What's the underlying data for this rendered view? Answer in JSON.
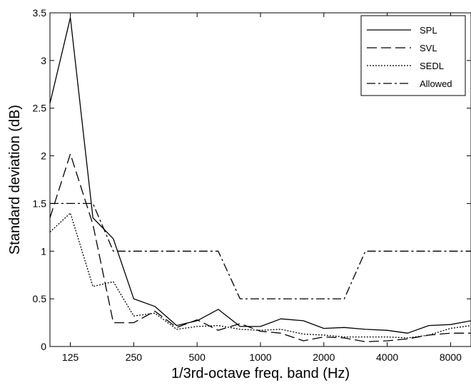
{
  "chart_data": {
    "type": "line",
    "title": "",
    "xlabel": "1/3rd-octave freq. band (Hz)",
    "ylabel": "Standard deviation (dB)",
    "x_scale": "log",
    "x": [
      100,
      125,
      160,
      200,
      250,
      315,
      400,
      500,
      630,
      800,
      1000,
      1250,
      1600,
      2000,
      2500,
      3150,
      4000,
      5000,
      6300,
      8000,
      10000
    ],
    "xlim": [
      100,
      10000
    ],
    "ylim": [
      0,
      3.5
    ],
    "xticks": [
      125,
      250,
      500,
      1000,
      2000,
      4000,
      8000
    ],
    "xtick_labels": [
      "125",
      "250",
      "500",
      "1000",
      "2000",
      "4000",
      "8000"
    ],
    "yticks": [
      0,
      0.5,
      1,
      1.5,
      2,
      2.5,
      3,
      3.5
    ],
    "ytick_labels": [
      "0",
      "0.5",
      "1",
      "1.5",
      "2",
      "2.5",
      "3",
      "3.5"
    ],
    "grid": false,
    "legend_position": "top-right",
    "series": [
      {
        "name": "SPL",
        "style": "solid",
        "values": [
          2.55,
          3.45,
          1.35,
          1.13,
          0.5,
          0.42,
          0.22,
          0.27,
          0.39,
          0.21,
          0.21,
          0.29,
          0.27,
          0.19,
          0.2,
          0.18,
          0.17,
          0.14,
          0.22,
          0.23,
          0.27
        ]
      },
      {
        "name": "SVL",
        "style": "dashed",
        "values": [
          1.35,
          2.02,
          1.28,
          0.25,
          0.25,
          0.37,
          0.2,
          0.28,
          0.17,
          0.24,
          0.16,
          0.14,
          0.06,
          0.1,
          0.09,
          0.05,
          0.06,
          0.08,
          0.12,
          0.14,
          0.14
        ]
      },
      {
        "name": "SEDL",
        "style": "dotted",
        "values": [
          1.2,
          1.4,
          0.63,
          0.68,
          0.32,
          0.35,
          0.18,
          0.21,
          0.22,
          0.18,
          0.17,
          0.18,
          0.13,
          0.12,
          0.1,
          0.1,
          0.1,
          0.09,
          0.12,
          0.19,
          0.22
        ]
      },
      {
        "name": "Allowed",
        "style": "dashdot",
        "values": [
          1.5,
          1.5,
          1.5,
          1.0,
          1.0,
          1.0,
          1.0,
          1.0,
          1.0,
          0.5,
          0.5,
          0.5,
          0.5,
          0.5,
          0.5,
          1.0,
          1.0,
          1.0,
          1.0,
          1.0,
          1.0
        ]
      }
    ]
  }
}
